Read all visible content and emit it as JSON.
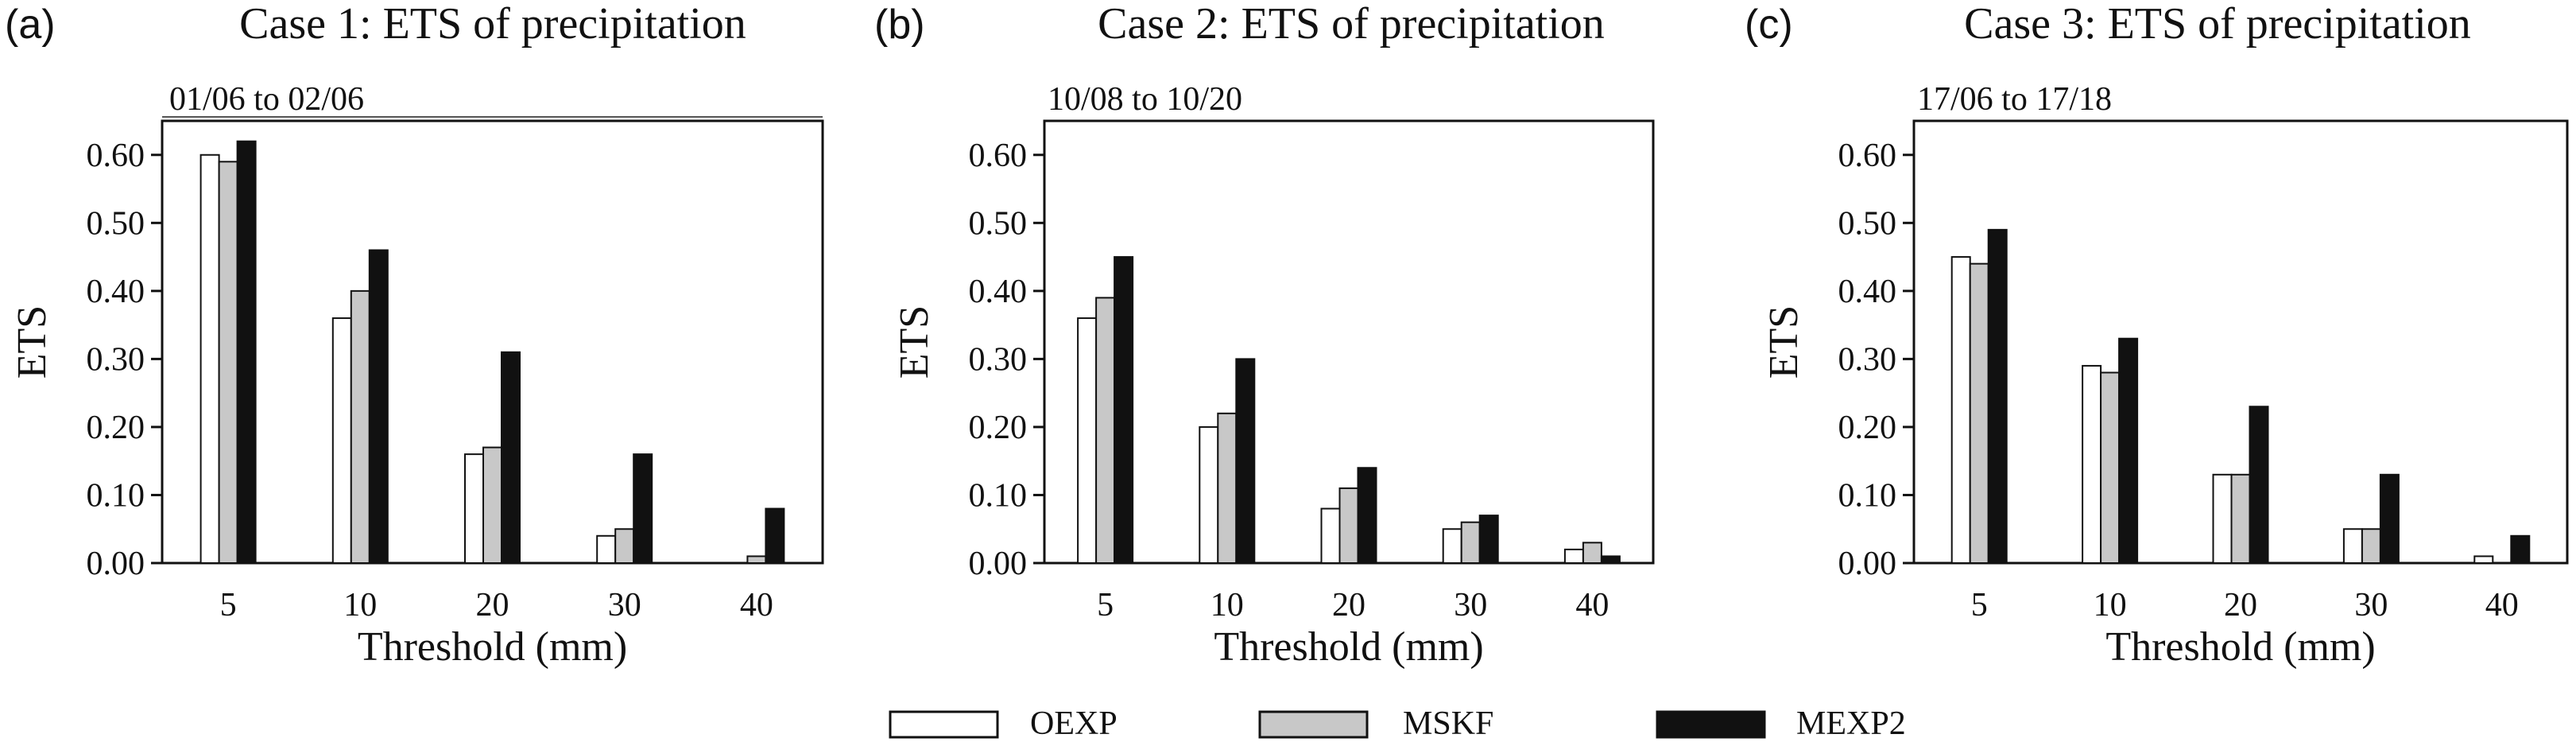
{
  "chart_data": [
    {
      "type": "bar",
      "panel_label": "(a)",
      "title": "Case 1: ETS of precipitation",
      "subtitle": "01/06 to 02/06",
      "xlabel": "Threshold (mm)",
      "ylabel": "ETS",
      "categories": [
        "5",
        "10",
        "20",
        "30",
        "40"
      ],
      "ylim": [
        0,
        0.65
      ],
      "yticks": [
        "0.00",
        "0.10",
        "0.20",
        "0.30",
        "0.40",
        "0.50",
        "0.60"
      ],
      "series": [
        {
          "name": "OEXP",
          "values": [
            0.6,
            0.36,
            0.16,
            0.04,
            0.0
          ]
        },
        {
          "name": "MSKF",
          "values": [
            0.59,
            0.4,
            0.17,
            0.05,
            0.01
          ]
        },
        {
          "name": "MEXP2",
          "values": [
            0.62,
            0.46,
            0.31,
            0.16,
            0.08
          ]
        }
      ]
    },
    {
      "type": "bar",
      "panel_label": "(b)",
      "title": "Case 2: ETS of precipitation",
      "subtitle": "10/08 to 10/20",
      "xlabel": "Threshold (mm)",
      "ylabel": "ETS",
      "categories": [
        "5",
        "10",
        "20",
        "30",
        "40"
      ],
      "ylim": [
        0,
        0.65
      ],
      "yticks": [
        "0.00",
        "0.10",
        "0.20",
        "0.30",
        "0.40",
        "0.50",
        "0.60"
      ],
      "series": [
        {
          "name": "OEXP",
          "values": [
            0.36,
            0.2,
            0.08,
            0.05,
            0.02
          ]
        },
        {
          "name": "MSKF",
          "values": [
            0.39,
            0.22,
            0.11,
            0.06,
            0.03
          ]
        },
        {
          "name": "MEXP2",
          "values": [
            0.45,
            0.3,
            0.14,
            0.07,
            0.01
          ]
        }
      ]
    },
    {
      "type": "bar",
      "panel_label": "(c)",
      "title": "Case 3: ETS of precipitation",
      "subtitle": "17/06 to 17/18",
      "xlabel": "Threshold (mm)",
      "ylabel": "ETS",
      "categories": [
        "5",
        "10",
        "20",
        "30",
        "40"
      ],
      "ylim": [
        0,
        0.65
      ],
      "yticks": [
        "0.00",
        "0.10",
        "0.20",
        "0.30",
        "0.40",
        "0.50",
        "0.60"
      ],
      "series": [
        {
          "name": "OEXP",
          "values": [
            0.45,
            0.29,
            0.13,
            0.05,
            0.01
          ]
        },
        {
          "name": "MSKF",
          "values": [
            0.44,
            0.28,
            0.13,
            0.05,
            0.0
          ]
        },
        {
          "name": "MEXP2",
          "values": [
            0.49,
            0.33,
            0.23,
            0.13,
            0.04
          ]
        }
      ]
    }
  ],
  "legend": {
    "placement": "bottom-center",
    "items": [
      {
        "label": "OEXP",
        "color": "#ffffff"
      },
      {
        "label": "MSKF",
        "color": "#c8c8c8"
      },
      {
        "label": "MEXP2",
        "color": "#111111"
      }
    ]
  },
  "colors": {
    "OEXP": "#ffffff",
    "MSKF": "#c8c8c8",
    "MEXP2": "#111111",
    "stroke": "#111111"
  }
}
